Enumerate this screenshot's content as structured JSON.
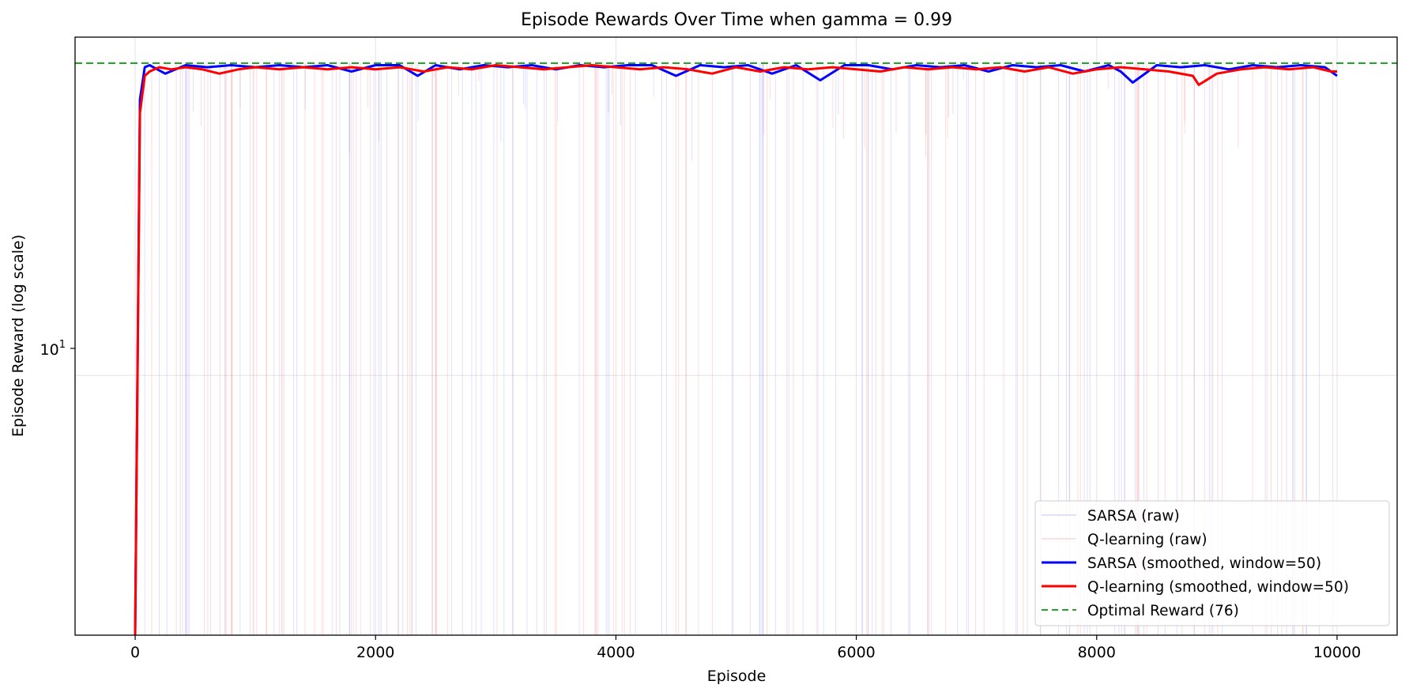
{
  "chart_data": {
    "type": "line",
    "title": "Episode Rewards Over Time when gamma = 0.99",
    "xlabel": "Episode",
    "ylabel": "Episode Reward (log scale)",
    "yscale": "log",
    "xlim": [
      -500,
      10500
    ],
    "ylim": [
      1.85,
      90
    ],
    "xticks": [
      0,
      2000,
      4000,
      6000,
      8000,
      10000
    ],
    "xtick_labels": [
      "0",
      "2000",
      "4000",
      "6000",
      "8000",
      "10000"
    ],
    "ytick_label": {
      "base": "10",
      "exp": "1",
      "value": 10
    },
    "grid": true,
    "legend_position": "lower-right",
    "colors": {
      "sarsa": "#0000ff",
      "qlearning": "#ff0000",
      "optimal": "#2ca02c",
      "sarsa_raw": "#0000ff",
      "qlearning_raw": "#ff0000"
    },
    "legend": [
      {
        "label": "SARSA (raw)",
        "style": "raw-blue"
      },
      {
        "label": "Q-learning (raw)",
        "style": "raw-red"
      },
      {
        "label": "SARSA (smoothed, window=50)",
        "style": "solid-blue"
      },
      {
        "label": "Q-learning (smoothed, window=50)",
        "style": "solid-red"
      },
      {
        "label": "Optimal Reward (76)",
        "style": "dashed-green"
      }
    ],
    "optimal_reward": 76,
    "series": [
      {
        "name": "SARSA (smoothed, window=50)",
        "x": [
          0,
          40,
          80,
          120,
          250,
          420,
          600,
          800,
          1000,
          1200,
          1400,
          1600,
          1800,
          2000,
          2200,
          2350,
          2500,
          2700,
          2900,
          3100,
          3300,
          3500,
          3700,
          3900,
          4100,
          4300,
          4500,
          4700,
          4900,
          5100,
          5300,
          5500,
          5700,
          5900,
          6100,
          6300,
          6500,
          6700,
          6900,
          7100,
          7300,
          7500,
          7700,
          7900,
          8100,
          8200,
          8300,
          8500,
          8700,
          8900,
          9100,
          9300,
          9500,
          9700,
          9900,
          10000
        ],
        "y": [
          1.85,
          60,
          74,
          75,
          71,
          75,
          74,
          75,
          74,
          75,
          74,
          75,
          72,
          75,
          75,
          70,
          75,
          73,
          75,
          74,
          75,
          73,
          75,
          74,
          75,
          75,
          70,
          75,
          74,
          75,
          71,
          75,
          68,
          75,
          75,
          73,
          75,
          74,
          75,
          72,
          75,
          74,
          75,
          72,
          75,
          72,
          67,
          75,
          74,
          75,
          73,
          75,
          74,
          75,
          74,
          70
        ]
      },
      {
        "name": "Q-learning (smoothed, window=50)",
        "x": [
          0,
          40,
          80,
          120,
          200,
          300,
          420,
          560,
          700,
          860,
          1000,
          1200,
          1400,
          1600,
          1800,
          2000,
          2200,
          2400,
          2600,
          2800,
          3000,
          3200,
          3400,
          3600,
          3800,
          4000,
          4200,
          4400,
          4600,
          4800,
          5000,
          5200,
          5400,
          5600,
          5800,
          6000,
          6200,
          6400,
          6600,
          6800,
          7000,
          7200,
          7400,
          7600,
          7800,
          8000,
          8200,
          8400,
          8600,
          8800,
          8850,
          9000,
          9200,
          9400,
          9600,
          9800,
          9950,
          10000
        ],
        "y": [
          1.85,
          55,
          70,
          72,
          74,
          73,
          74,
          73,
          71,
          73,
          74,
          73,
          74,
          73,
          74,
          73,
          74,
          72,
          74,
          73,
          75,
          74,
          73,
          74,
          75,
          74,
          73,
          74,
          73,
          71,
          74,
          72,
          74,
          73,
          74,
          73,
          72,
          74,
          73,
          74,
          73,
          74,
          72,
          74,
          71,
          73,
          74,
          73,
          72,
          70,
          66,
          71,
          73,
          74,
          73,
          74,
          72,
          72
        ]
      }
    ]
  }
}
